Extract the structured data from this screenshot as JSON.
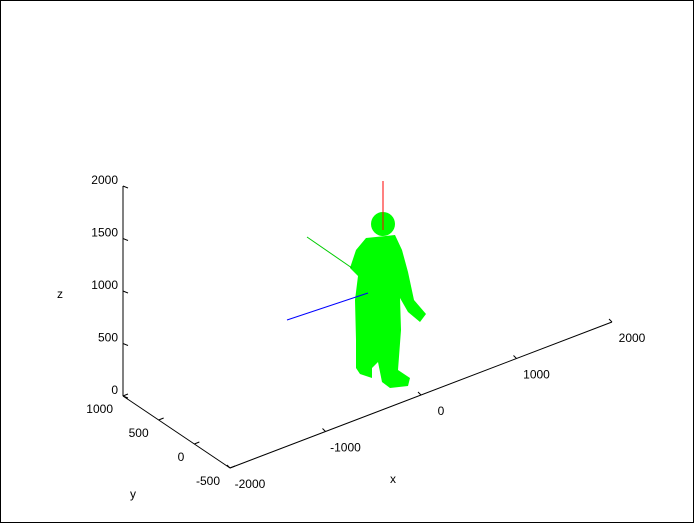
{
  "chart_data": {
    "type": "scatter3d",
    "xlabel": "x",
    "ylabel": "y",
    "zlabel": "z",
    "xlim": [
      -2000,
      2000
    ],
    "ylim": [
      -500,
      1000
    ],
    "zlim": [
      0,
      2000
    ],
    "xticks": [
      -2000,
      -1000,
      0,
      1000,
      2000
    ],
    "yticks": [
      -500,
      0,
      500,
      1000
    ],
    "zticks": [
      0,
      500,
      1000,
      1500,
      2000
    ],
    "color": "#00ff00"
  }
}
